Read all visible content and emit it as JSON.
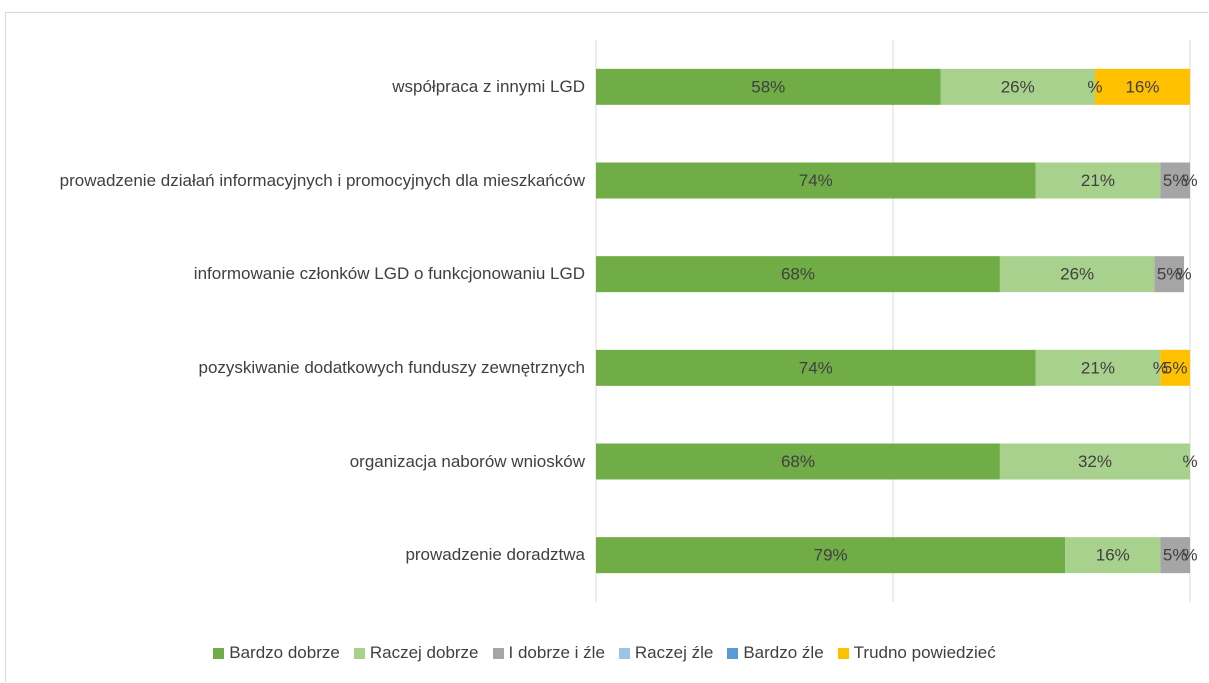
{
  "chart_data": {
    "type": "stacked_barh",
    "categories": [
      "współpraca z innymi LGD",
      "prowadzenie działań informacyjnych i promocyjnych dla mieszkańców",
      "informowanie członków LGD o funkcjonowaniu LGD",
      "pozyskiwanie dodatkowych funduszy zewnętrznych",
      "organizacja naborów wniosków",
      "prowadzenie doradztwa"
    ],
    "series": [
      {
        "name": "Bardzo dobrze",
        "color": "#70ad47",
        "values": [
          58,
          74,
          68,
          74,
          68,
          79
        ],
        "value_labels": [
          "58%",
          "74%",
          "68%",
          "74%",
          "68%",
          "79%"
        ]
      },
      {
        "name": "Raczej dobrze",
        "color": "#a9d18e",
        "values": [
          26,
          21,
          26,
          21,
          32,
          16
        ],
        "value_labels": [
          "26%",
          "21%",
          "26%",
          "21%",
          "32%",
          "16%"
        ]
      },
      {
        "name": "I dobrze i źle",
        "color": "#a5a5a5",
        "values": [
          0,
          5,
          5,
          0,
          0,
          5
        ],
        "value_labels": [
          "%",
          "5%",
          "5%",
          "%",
          "%",
          "5%"
        ]
      },
      {
        "name": "Raczej źle",
        "color": "#9dc3e6",
        "values": [
          0,
          0,
          0,
          0,
          0,
          0
        ],
        "value_labels": [
          null,
          null,
          null,
          null,
          null,
          null
        ]
      },
      {
        "name": "Bardzo źle",
        "color": "#5b9bd5",
        "values": [
          0,
          0,
          0,
          0,
          0,
          0
        ],
        "value_labels": [
          null,
          null,
          null,
          null,
          null,
          null
        ]
      },
      {
        "name": "Trudno powiedzieć",
        "color": "#ffc000",
        "values": [
          16,
          0,
          0,
          5,
          0,
          0
        ],
        "value_labels": [
          "16%",
          "%",
          "%",
          "5%",
          null,
          "%"
        ]
      }
    ],
    "xlim": [
      0,
      100
    ],
    "xticks": [
      0,
      50,
      100
    ],
    "grid": true,
    "legend": "bottom"
  }
}
